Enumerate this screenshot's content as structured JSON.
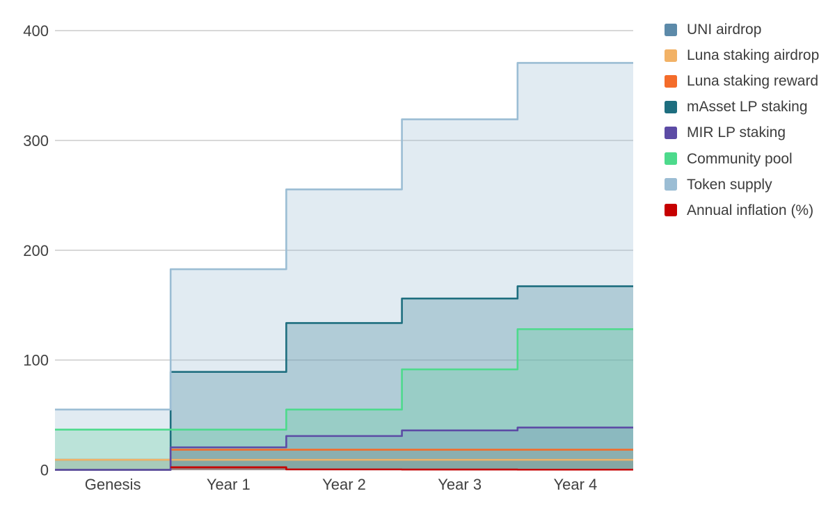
{
  "chart_data": {
    "type": "area",
    "subtype": "step",
    "title": "",
    "xlabel": "",
    "ylabel": "",
    "categories": [
      "Genesis",
      "Year 1",
      "Year 2",
      "Year 3",
      "Year 4"
    ],
    "series": [
      {
        "name": "UNI airdrop",
        "color": "#5c8aa9",
        "values": [
          9.15,
          9.15,
          9.15,
          9.15,
          9.15
        ]
      },
      {
        "name": "Luna staking airdrop",
        "color": "#f2b266",
        "values": [
          9.15,
          9.15,
          9.15,
          9.15,
          9.15
        ]
      },
      {
        "name": "Luna staking reward",
        "color": "#f46c2a",
        "values": [
          0,
          18.3,
          18.3,
          18.3,
          18.3
        ]
      },
      {
        "name": "mAsset LP staking",
        "color": "#1e6e7f",
        "values": [
          0,
          89.2,
          133.7,
          156.0,
          167.2
        ]
      },
      {
        "name": "MIR LP staking",
        "color": "#5c4ba5",
        "values": [
          0,
          20.5,
          30.8,
          35.9,
          38.5
        ]
      },
      {
        "name": "Community pool",
        "color": "#4dda8c",
        "values": [
          36.6,
          36.6,
          54.9,
          91.5,
          128.1
        ]
      },
      {
        "name": "Token supply",
        "color": "#9bbdd4",
        "values": [
          54.9,
          182.7,
          255.4,
          319.2,
          370.6
        ]
      },
      {
        "name": "Annual inflation (%)",
        "color": "#c60000",
        "values": [
          null,
          2.33,
          0.4,
          0.25,
          0.16
        ]
      }
    ],
    "ylim": [
      0,
      400
    ],
    "yticks": [
      0,
      100,
      200,
      300,
      400
    ],
    "grid": true,
    "legend_position": "right",
    "area_opacity": 0.3,
    "colors": {
      "background": "#ffffff",
      "gridline": "#cbcbcb",
      "axis_label": "#404040"
    }
  }
}
